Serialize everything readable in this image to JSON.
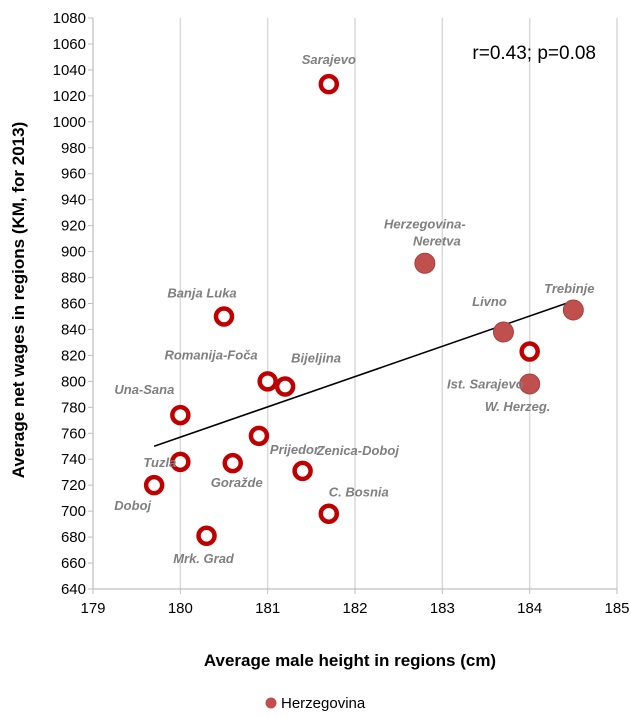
{
  "chart_data": {
    "type": "scatter",
    "xlabel": "Average male height  in regions (cm)",
    "ylabel": "Average net wages in regions (KM, for 2013)",
    "xlim": [
      179,
      185
    ],
    "ylim": [
      640,
      1080
    ],
    "x_ticks": [
      "179",
      "180",
      "181",
      "182",
      "183",
      "184",
      "185"
    ],
    "y_ticks": [
      "640",
      "660",
      "680",
      "700",
      "720",
      "740",
      "760",
      "780",
      "800",
      "820",
      "840",
      "860",
      "880",
      "900",
      "920",
      "940",
      "960",
      "980",
      "1000",
      "1020",
      "1040",
      "1060",
      "1080"
    ],
    "grid": "vertical",
    "annotation": "r=0.43; p=0.08",
    "colors": {
      "ring": "#c00000",
      "filled": "#c0504d",
      "trend": "#000000",
      "grid": "#d9d9d9",
      "label": "#7f7f7f"
    },
    "series": [
      {
        "style": "ring",
        "points": [
          {
            "label": "Sarajevo",
            "x": 181.7,
            "y": 1029
          },
          {
            "label": "Banja Luka",
            "x": 180.5,
            "y": 850
          },
          {
            "label": "Romanija-Foča",
            "x": 181.0,
            "y": 800
          },
          {
            "label": "Bijeljina",
            "x": 181.2,
            "y": 796
          },
          {
            "label": "Una-Sana",
            "x": 180.0,
            "y": 774
          },
          {
            "label": "Prijedor",
            "x": 180.9,
            "y": 758
          },
          {
            "label": "Tuzla",
            "x": 180.0,
            "y": 738
          },
          {
            "label": "Goražde",
            "x": 180.6,
            "y": 737
          },
          {
            "label": "Zenica-Doboj",
            "x": 181.4,
            "y": 731
          },
          {
            "label": "Doboj",
            "x": 179.7,
            "y": 720
          },
          {
            "label": "C. Bosnia",
            "x": 181.7,
            "y": 698
          },
          {
            "label": "Mrk. Grad",
            "x": 180.3,
            "y": 681
          },
          {
            "label": "Ist. Sarajevo",
            "x": 184.0,
            "y": 823
          }
        ]
      },
      {
        "name": "Herzegovina",
        "style": "filled",
        "points": [
          {
            "label": "Herzegovina-\nNeretva",
            "x": 182.8,
            "y": 891
          },
          {
            "label": "Trebinje",
            "x": 184.5,
            "y": 855
          },
          {
            "label": "Livno",
            "x": 183.7,
            "y": 838
          },
          {
            "label": "W. Herzeg.",
            "x": 184.0,
            "y": 798
          }
        ]
      }
    ],
    "trendline": {
      "x": [
        179.7,
        184.5
      ],
      "y": [
        750,
        862
      ]
    },
    "legend": {
      "position": "bottom",
      "entries": [
        "Herzegovina"
      ]
    }
  }
}
